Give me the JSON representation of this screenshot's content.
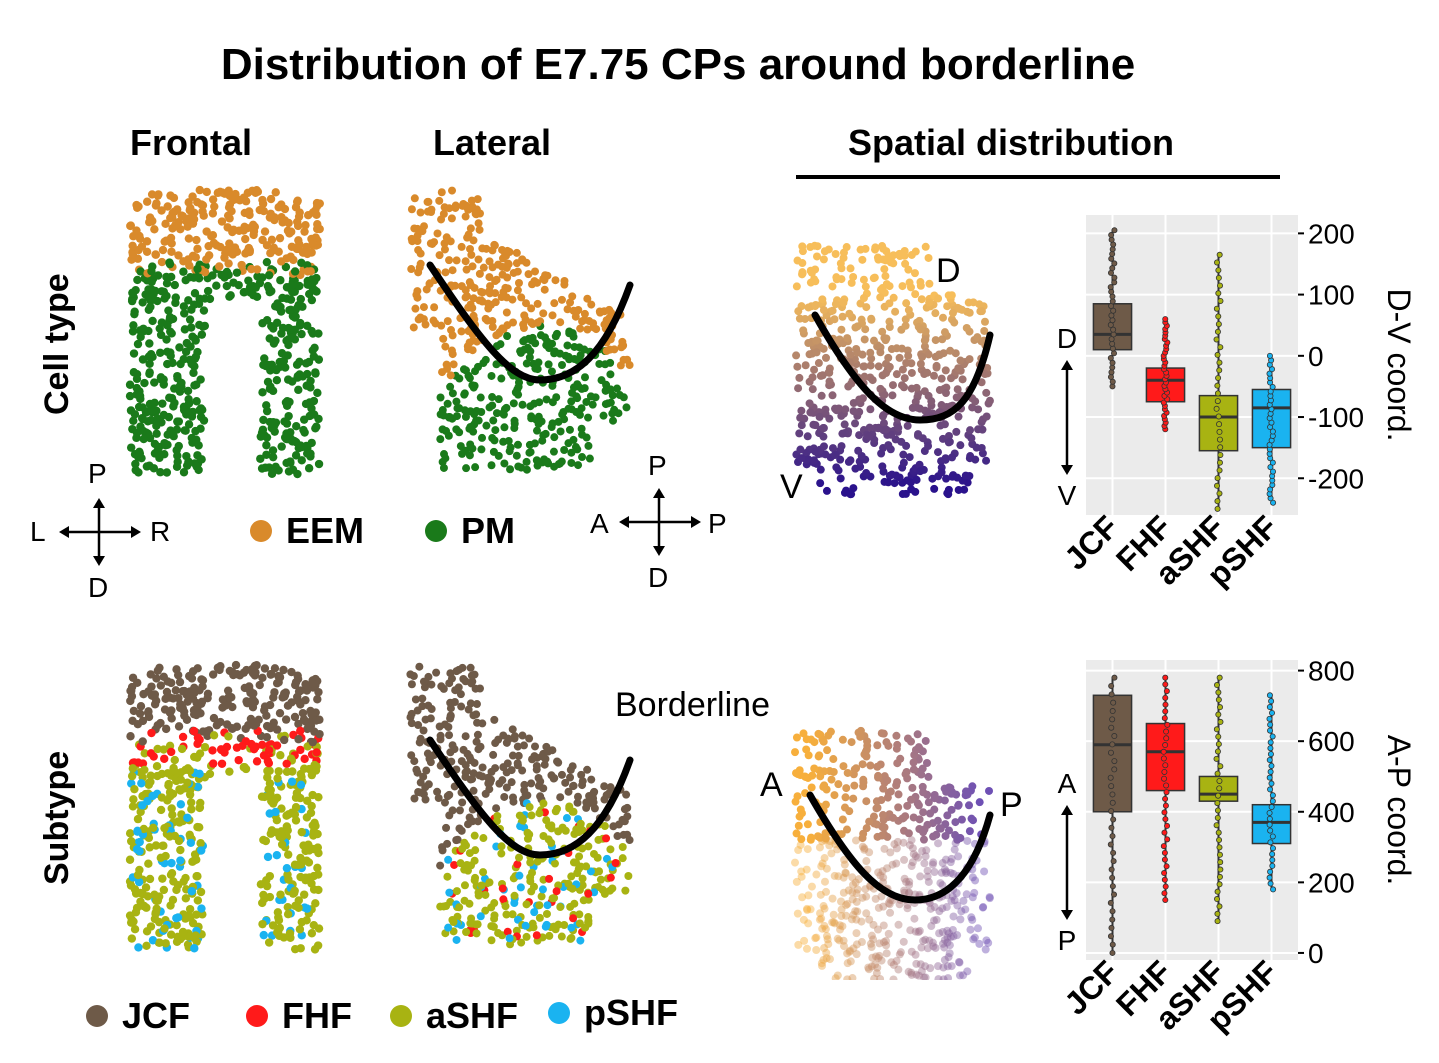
{
  "title": "Distribution of E7.75 CPs around borderline",
  "columns": {
    "frontal": "Frontal",
    "lateral": "Lateral",
    "spatial": "Spatial distribution"
  },
  "rows": {
    "top": "Cell type",
    "bottom": "Subtype"
  },
  "compass_frontal": {
    "up": "P",
    "down": "D",
    "left": "L",
    "right": "R"
  },
  "compass_lateral": {
    "up": "P",
    "down": "D",
    "left": "A",
    "right": "P"
  },
  "legend_celltype": [
    {
      "label": "EEM",
      "color": "#d98a2b"
    },
    {
      "label": "PM",
      "color": "#1a7a1a"
    }
  ],
  "legend_subtype": [
    {
      "label": "JCF",
      "color": "#6e5a48"
    },
    {
      "label": "FHF",
      "color": "#ff1a1a"
    },
    {
      "label": "aSHF",
      "color": "#a8b312"
    },
    {
      "label": "pSHF",
      "color": "#1ab3f0"
    }
  ],
  "borderline_label": "Borderline",
  "spatial_top_labels": {
    "top": "D",
    "bottom": "V"
  },
  "spatial_bottom_labels": {
    "left": "A",
    "right": "P"
  },
  "boxplot_top_side": {
    "top": "D",
    "bottom": "V"
  },
  "boxplot_bottom_side": {
    "top": "A",
    "bottom": "P"
  },
  "chart_data": [
    {
      "type": "boxplot",
      "categories": [
        "JCF",
        "FHF",
        "aSHF",
        "pSHF"
      ],
      "colors": [
        "#6e5a48",
        "#ff1a1a",
        "#a8b312",
        "#1ab3f0"
      ],
      "ylabel": "D-V coord.",
      "yticks": [
        200,
        100,
        0,
        -100,
        -200
      ],
      "ylim": [
        -260,
        230
      ],
      "boxes": [
        {
          "q1": 10,
          "median": 35,
          "q3": 85,
          "min": -50,
          "max": 205
        },
        {
          "q1": -75,
          "median": -40,
          "q3": -20,
          "min": -120,
          "max": 60
        },
        {
          "q1": -155,
          "median": -100,
          "q3": -65,
          "min": -250,
          "max": 165
        },
        {
          "q1": -150,
          "median": -85,
          "q3": -55,
          "min": -240,
          "max": 0
        }
      ],
      "grid": true
    },
    {
      "type": "boxplot",
      "categories": [
        "JCF",
        "FHF",
        "aSHF",
        "pSHF"
      ],
      "colors": [
        "#6e5a48",
        "#ff1a1a",
        "#a8b312",
        "#1ab3f0"
      ],
      "ylabel": "A-P coord.",
      "yticks": [
        800,
        600,
        400,
        200,
        0
      ],
      "ylim": [
        -20,
        830
      ],
      "boxes": [
        {
          "q1": 400,
          "median": 590,
          "q3": 730,
          "min": 0,
          "max": 780
        },
        {
          "q1": 460,
          "median": 570,
          "q3": 650,
          "min": 150,
          "max": 780
        },
        {
          "q1": 430,
          "median": 450,
          "q3": 500,
          "min": 90,
          "max": 780
        },
        {
          "q1": 310,
          "median": 370,
          "q3": 420,
          "min": 180,
          "max": 730
        }
      ],
      "grid": true
    }
  ]
}
